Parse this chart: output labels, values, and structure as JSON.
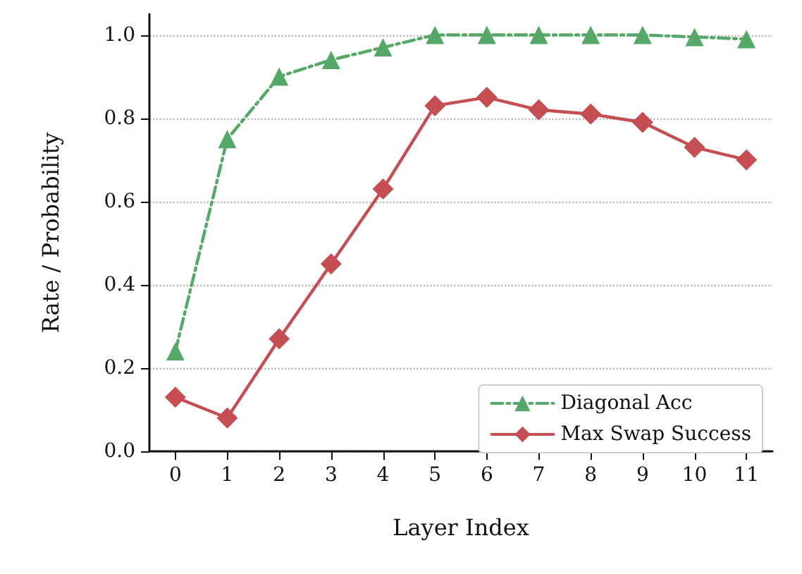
{
  "chart_data": {
    "type": "line",
    "xlabel": "Layer Index",
    "ylabel": "Rate / Probability",
    "categories": [
      "0",
      "1",
      "2",
      "3",
      "4",
      "5",
      "6",
      "7",
      "8",
      "9",
      "10",
      "11"
    ],
    "series": [
      {
        "name": "Diagonal Acc",
        "color": "#55a868",
        "marker": "triangle",
        "line_style": "dashed",
        "values": [
          0.24,
          0.75,
          0.9,
          0.94,
          0.97,
          1.0,
          1.0,
          1.0,
          1.0,
          1.0,
          0.995,
          0.99
        ]
      },
      {
        "name": "Max Swap Success",
        "color": "#c44e52",
        "marker": "diamond",
        "line_style": "solid",
        "values": [
          0.13,
          0.08,
          0.27,
          0.45,
          0.63,
          0.83,
          0.85,
          0.82,
          0.81,
          0.79,
          0.73,
          0.7
        ]
      }
    ],
    "ylim": [
      0,
      1.05
    ],
    "yticks": [
      {
        "value": 0,
        "label": "0.0"
      },
      {
        "value": 0.2,
        "label": "0.2"
      },
      {
        "value": 0.4,
        "label": "0.4"
      },
      {
        "value": 0.6,
        "label": "0.6"
      },
      {
        "value": 0.8,
        "label": "0.8"
      },
      {
        "value": 1,
        "label": "1.0"
      }
    ],
    "grid": "y",
    "legend": "bottom right"
  }
}
